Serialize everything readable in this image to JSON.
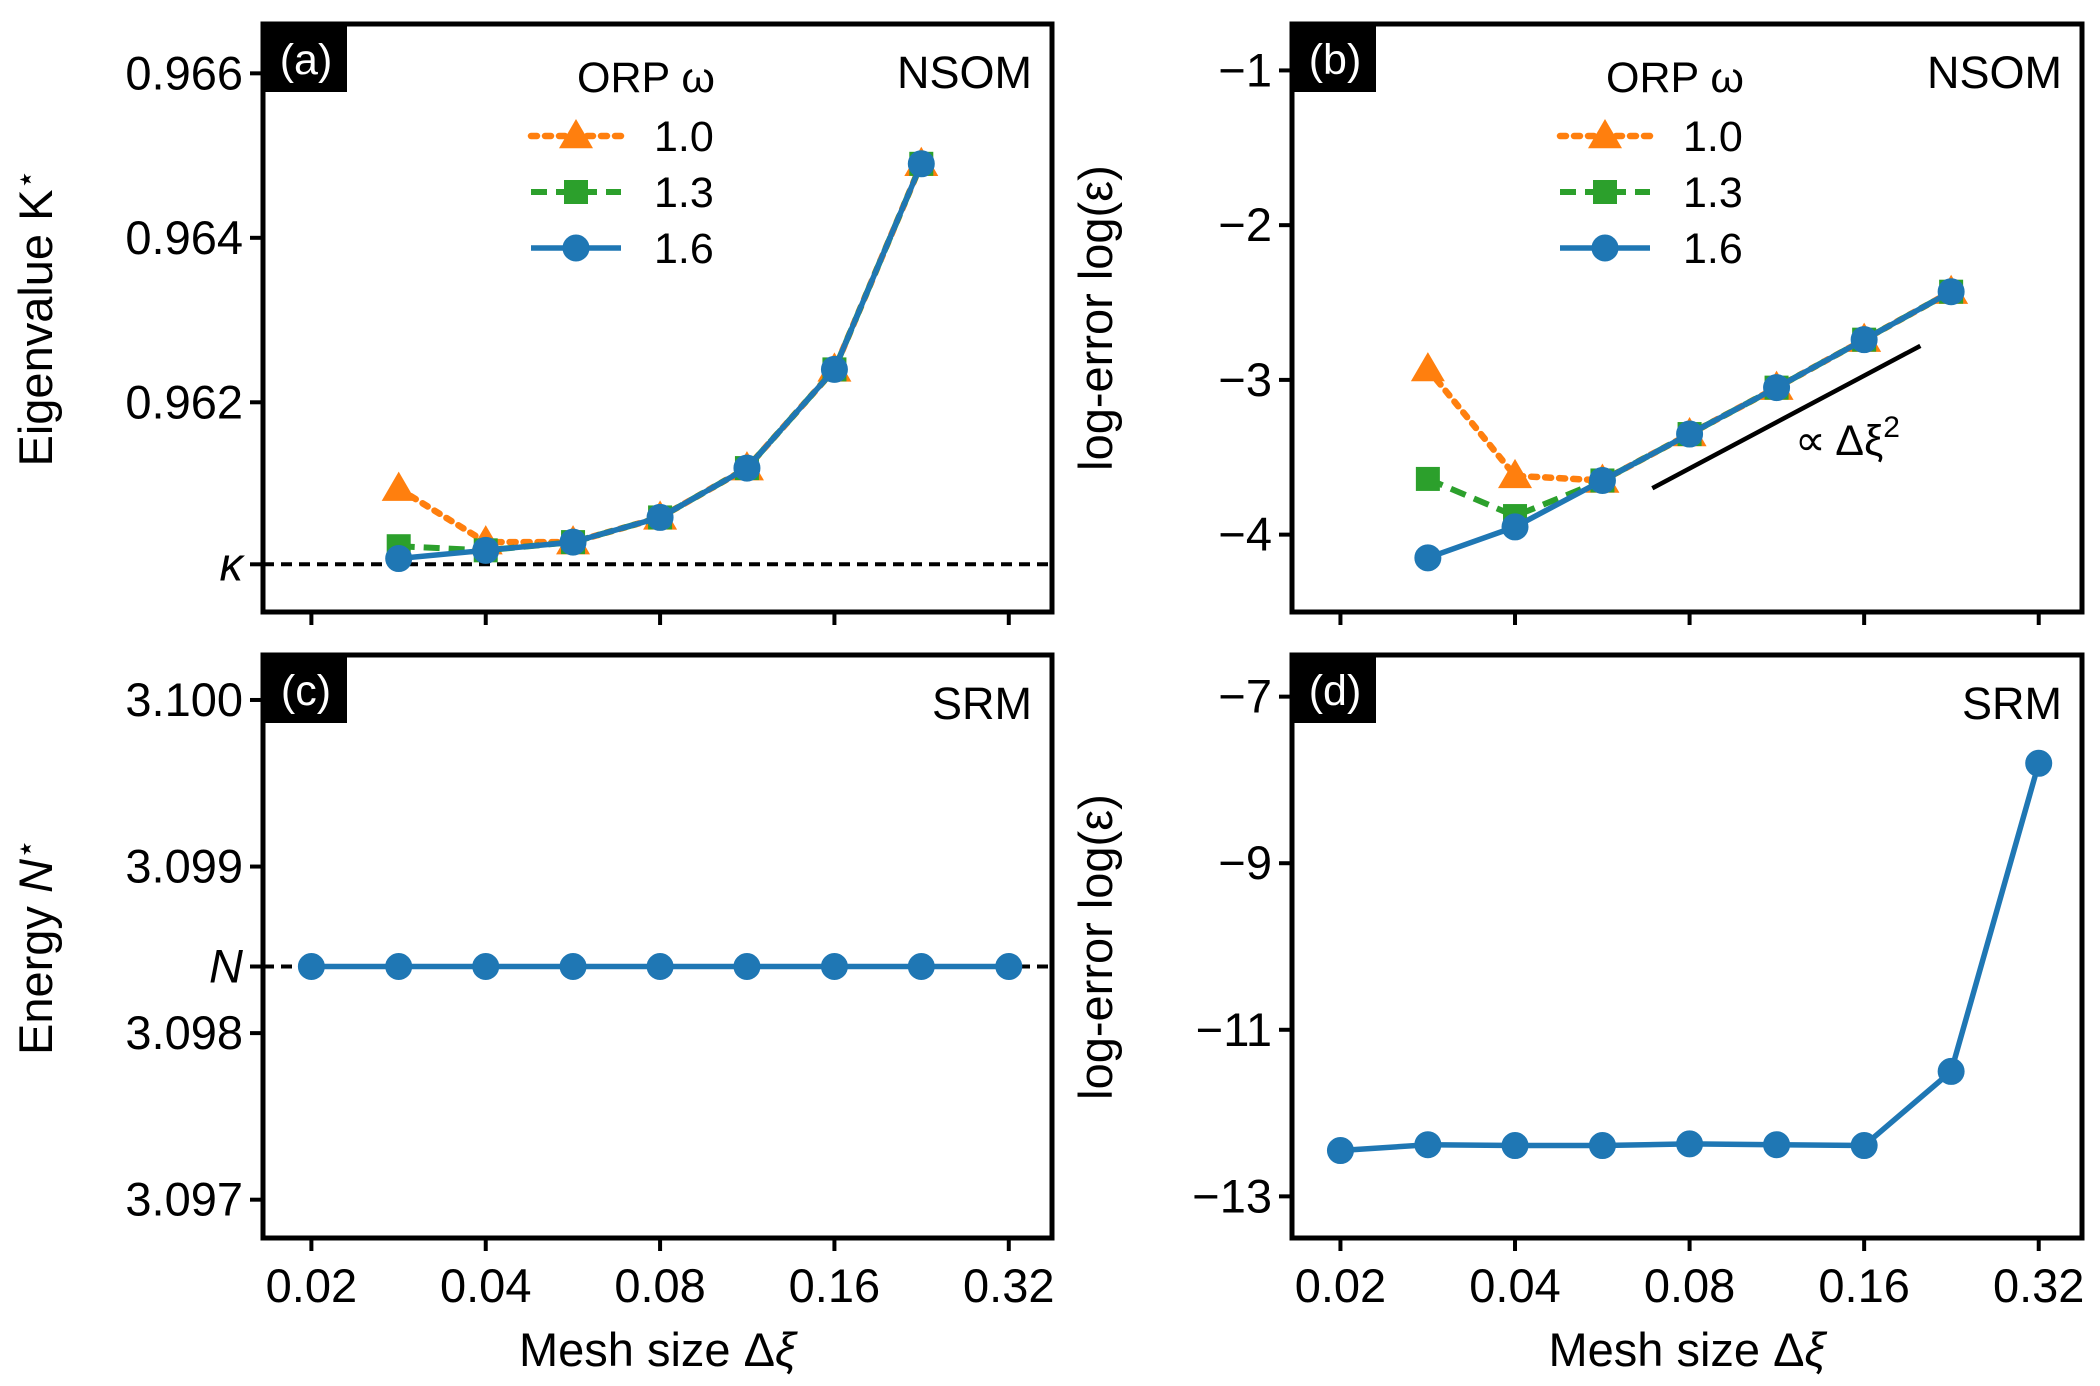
{
  "colors": {
    "orange": "#ff7f0e",
    "green": "#2ca02c",
    "blue": "#1f77b4"
  },
  "chart_data": [
    {
      "id": "a",
      "type": "line",
      "panel_label": "(a)",
      "corner_text": "NSOM",
      "xlabel": "",
      "ylabel_text": "Eigenvalue K",
      "ylabel_sup": "⋆",
      "xscale": "log2",
      "xlim": [
        0.0165,
        0.38
      ],
      "ylim": [
        0.95945,
        0.9666
      ],
      "xticks": [
        0.02,
        0.04,
        0.08,
        0.16,
        0.32
      ],
      "xticklabels_visible": false,
      "yticks": [
        0.962,
        0.964,
        0.966
      ],
      "yticklabels": [
        "0.962",
        "0.964",
        "0.966"
      ],
      "reference": {
        "value": 0.96003,
        "label": "κ"
      },
      "legend": {
        "title": "ORP ω",
        "location": "top-center"
      },
      "series": [
        {
          "name": "1.0",
          "color": "orange",
          "marker": "triangle",
          "dash": "dotted",
          "x": [
            0.0283,
            0.04,
            0.0566,
            0.08,
            0.113,
            0.16,
            0.226
          ],
          "y": [
            0.96095,
            0.9603,
            0.9603,
            0.9606,
            0.9612,
            0.9624,
            0.9649
          ]
        },
        {
          "name": "1.3",
          "color": "green",
          "marker": "square",
          "dash": "dashed",
          "x": [
            0.0283,
            0.04,
            0.0566,
            0.08,
            0.113,
            0.16,
            0.226
          ],
          "y": [
            0.96025,
            0.9602,
            0.9603,
            0.9606,
            0.9612,
            0.9624,
            0.9649
          ]
        },
        {
          "name": "1.6",
          "color": "blue",
          "marker": "circle",
          "dash": "solid",
          "x": [
            0.0283,
            0.04,
            0.0566,
            0.08,
            0.113,
            0.16,
            0.226
          ],
          "y": [
            0.9601,
            0.9602,
            0.9603,
            0.9606,
            0.9612,
            0.9624,
            0.9649
          ]
        }
      ]
    },
    {
      "id": "b",
      "type": "line",
      "panel_label": "(b)",
      "corner_text": "NSOM",
      "xlabel": "",
      "ylabel_text": "log-error log(ε)",
      "xscale": "log2",
      "xlim": [
        0.0165,
        0.38
      ],
      "ylim": [
        -4.5,
        -0.7
      ],
      "xticks": [
        0.02,
        0.04,
        0.08,
        0.16,
        0.32
      ],
      "xticklabels_visible": false,
      "yticks": [
        -4,
        -3,
        -2,
        -1
      ],
      "yticklabels": [
        "−4",
        "−3",
        "−2",
        "−1"
      ],
      "legend": {
        "title": "ORP ω",
        "location": "top-center"
      },
      "annotation": {
        "text": "∝ Δξ",
        "sup": "2",
        "x0": 0.069,
        "y0": -3.7,
        "x1": 0.2,
        "y1": -2.78
      },
      "series": [
        {
          "name": "1.0",
          "color": "orange",
          "marker": "triangle",
          "dash": "dotted",
          "x": [
            0.0283,
            0.04,
            0.0566,
            0.08,
            0.113,
            0.16,
            0.226
          ],
          "y": [
            -2.93,
            -3.62,
            -3.65,
            -3.35,
            -3.05,
            -2.74,
            -2.43
          ]
        },
        {
          "name": "1.3",
          "color": "green",
          "marker": "square",
          "dash": "dashed",
          "x": [
            0.0283,
            0.04,
            0.0566,
            0.08,
            0.113,
            0.16,
            0.226
          ],
          "y": [
            -3.64,
            -3.88,
            -3.65,
            -3.35,
            -3.05,
            -2.74,
            -2.43
          ]
        },
        {
          "name": "1.6",
          "color": "blue",
          "marker": "circle",
          "dash": "solid",
          "x": [
            0.0283,
            0.04,
            0.0566,
            0.08,
            0.113,
            0.16,
            0.226
          ],
          "y": [
            -4.15,
            -3.95,
            -3.65,
            -3.35,
            -3.05,
            -2.74,
            -2.43
          ]
        }
      ]
    },
    {
      "id": "c",
      "type": "line",
      "panel_label": "(c)",
      "corner_text": "SRM",
      "xlabel_text": "Mesh size Δ",
      "xlabel_var": "ξ",
      "ylabel_text": "Energy ",
      "ylabel_var": "N",
      "ylabel_sup": "⋆",
      "xscale": "log2",
      "xlim": [
        0.0165,
        0.38
      ],
      "ylim": [
        3.09677,
        3.10027
      ],
      "xticks": [
        0.02,
        0.04,
        0.08,
        0.16,
        0.32
      ],
      "xticklabels": [
        "0.02",
        "0.04",
        "0.08",
        "0.16",
        "0.32"
      ],
      "yticks": [
        3.097,
        3.098,
        3.099,
        3.1
      ],
      "yticklabels": [
        "3.097",
        "3.098",
        "3.099",
        "3.100"
      ],
      "reference": {
        "value": 3.0984,
        "label": "N"
      },
      "series": [
        {
          "name": "1.6",
          "color": "blue",
          "marker": "circle",
          "dash": "solid",
          "x": [
            0.02,
            0.0283,
            0.04,
            0.0566,
            0.08,
            0.113,
            0.16,
            0.226,
            0.32
          ],
          "y": [
            3.0984,
            3.0984,
            3.0984,
            3.0984,
            3.0984,
            3.0984,
            3.0984,
            3.0984,
            3.0984
          ]
        }
      ]
    },
    {
      "id": "d",
      "type": "line",
      "panel_label": "(d)",
      "corner_text": "SRM",
      "xlabel_text": "Mesh size Δ",
      "xlabel_var": "ξ",
      "ylabel_text": "log-error log(ε)",
      "xscale": "log2",
      "xlim": [
        0.0165,
        0.38
      ],
      "ylim": [
        -13.5,
        -6.5
      ],
      "xticks": [
        0.02,
        0.04,
        0.08,
        0.16,
        0.32
      ],
      "xticklabels": [
        "0.02",
        "0.04",
        "0.08",
        "0.16",
        "0.32"
      ],
      "yticks": [
        -13,
        -11,
        -9,
        -7
      ],
      "yticklabels": [
        "−13",
        "−11",
        "−9",
        "−7"
      ],
      "series": [
        {
          "name": "1.6",
          "color": "blue",
          "marker": "circle",
          "dash": "solid",
          "x": [
            0.02,
            0.0283,
            0.04,
            0.0566,
            0.08,
            0.113,
            0.16,
            0.226,
            0.32
          ],
          "y": [
            -12.45,
            -12.38,
            -12.39,
            -12.39,
            -12.37,
            -12.38,
            -12.39,
            -11.5,
            -7.8
          ]
        }
      ]
    }
  ]
}
